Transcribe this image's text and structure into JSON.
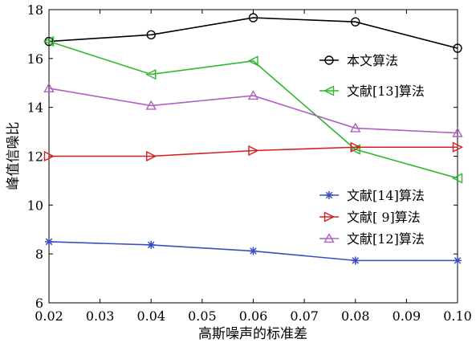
{
  "chart_data": {
    "type": "line",
    "title": "",
    "xlabel": "高斯噪声的标准差",
    "ylabel": "峰值信噪比",
    "x": [
      0.02,
      0.04,
      0.06,
      0.08,
      0.1
    ],
    "xlim": [
      0.02,
      0.1
    ],
    "ylim": [
      6,
      18
    ],
    "xticks": [
      "0.02",
      "0.03",
      "0.04",
      "0.05",
      "0.06",
      "0.07",
      "0.08",
      "0.09",
      "0.10"
    ],
    "yticks": [
      "6",
      "8",
      "10",
      "12",
      "14",
      "16",
      "18"
    ],
    "grid": false,
    "series": [
      {
        "name": "本文算法",
        "values": [
          16.7,
          16.97,
          17.67,
          17.5,
          16.42
        ],
        "color": "#000000",
        "marker": "circle",
        "legend": "top-right"
      },
      {
        "name": "文献[13]算法",
        "values": [
          16.7,
          15.35,
          15.9,
          12.28,
          11.1
        ],
        "color": "#2db82d",
        "marker": "triangle-left",
        "legend": "top-right"
      },
      {
        "name": "文献[14]算法",
        "values": [
          8.5,
          8.37,
          8.12,
          7.73,
          7.73
        ],
        "color": "#3a4ec0",
        "marker": "asterisk",
        "legend": "bottom-right"
      },
      {
        "name": "文献[ 9]算法",
        "values": [
          12.0,
          12.0,
          12.23,
          12.37,
          12.37
        ],
        "color": "#d42020",
        "marker": "triangle-right",
        "legend": "bottom-right"
      },
      {
        "name": "文献[12]算法",
        "values": [
          14.78,
          14.07,
          14.48,
          13.15,
          12.95
        ],
        "color": "#b060c0",
        "marker": "triangle-up",
        "legend": "bottom-right"
      }
    ]
  }
}
